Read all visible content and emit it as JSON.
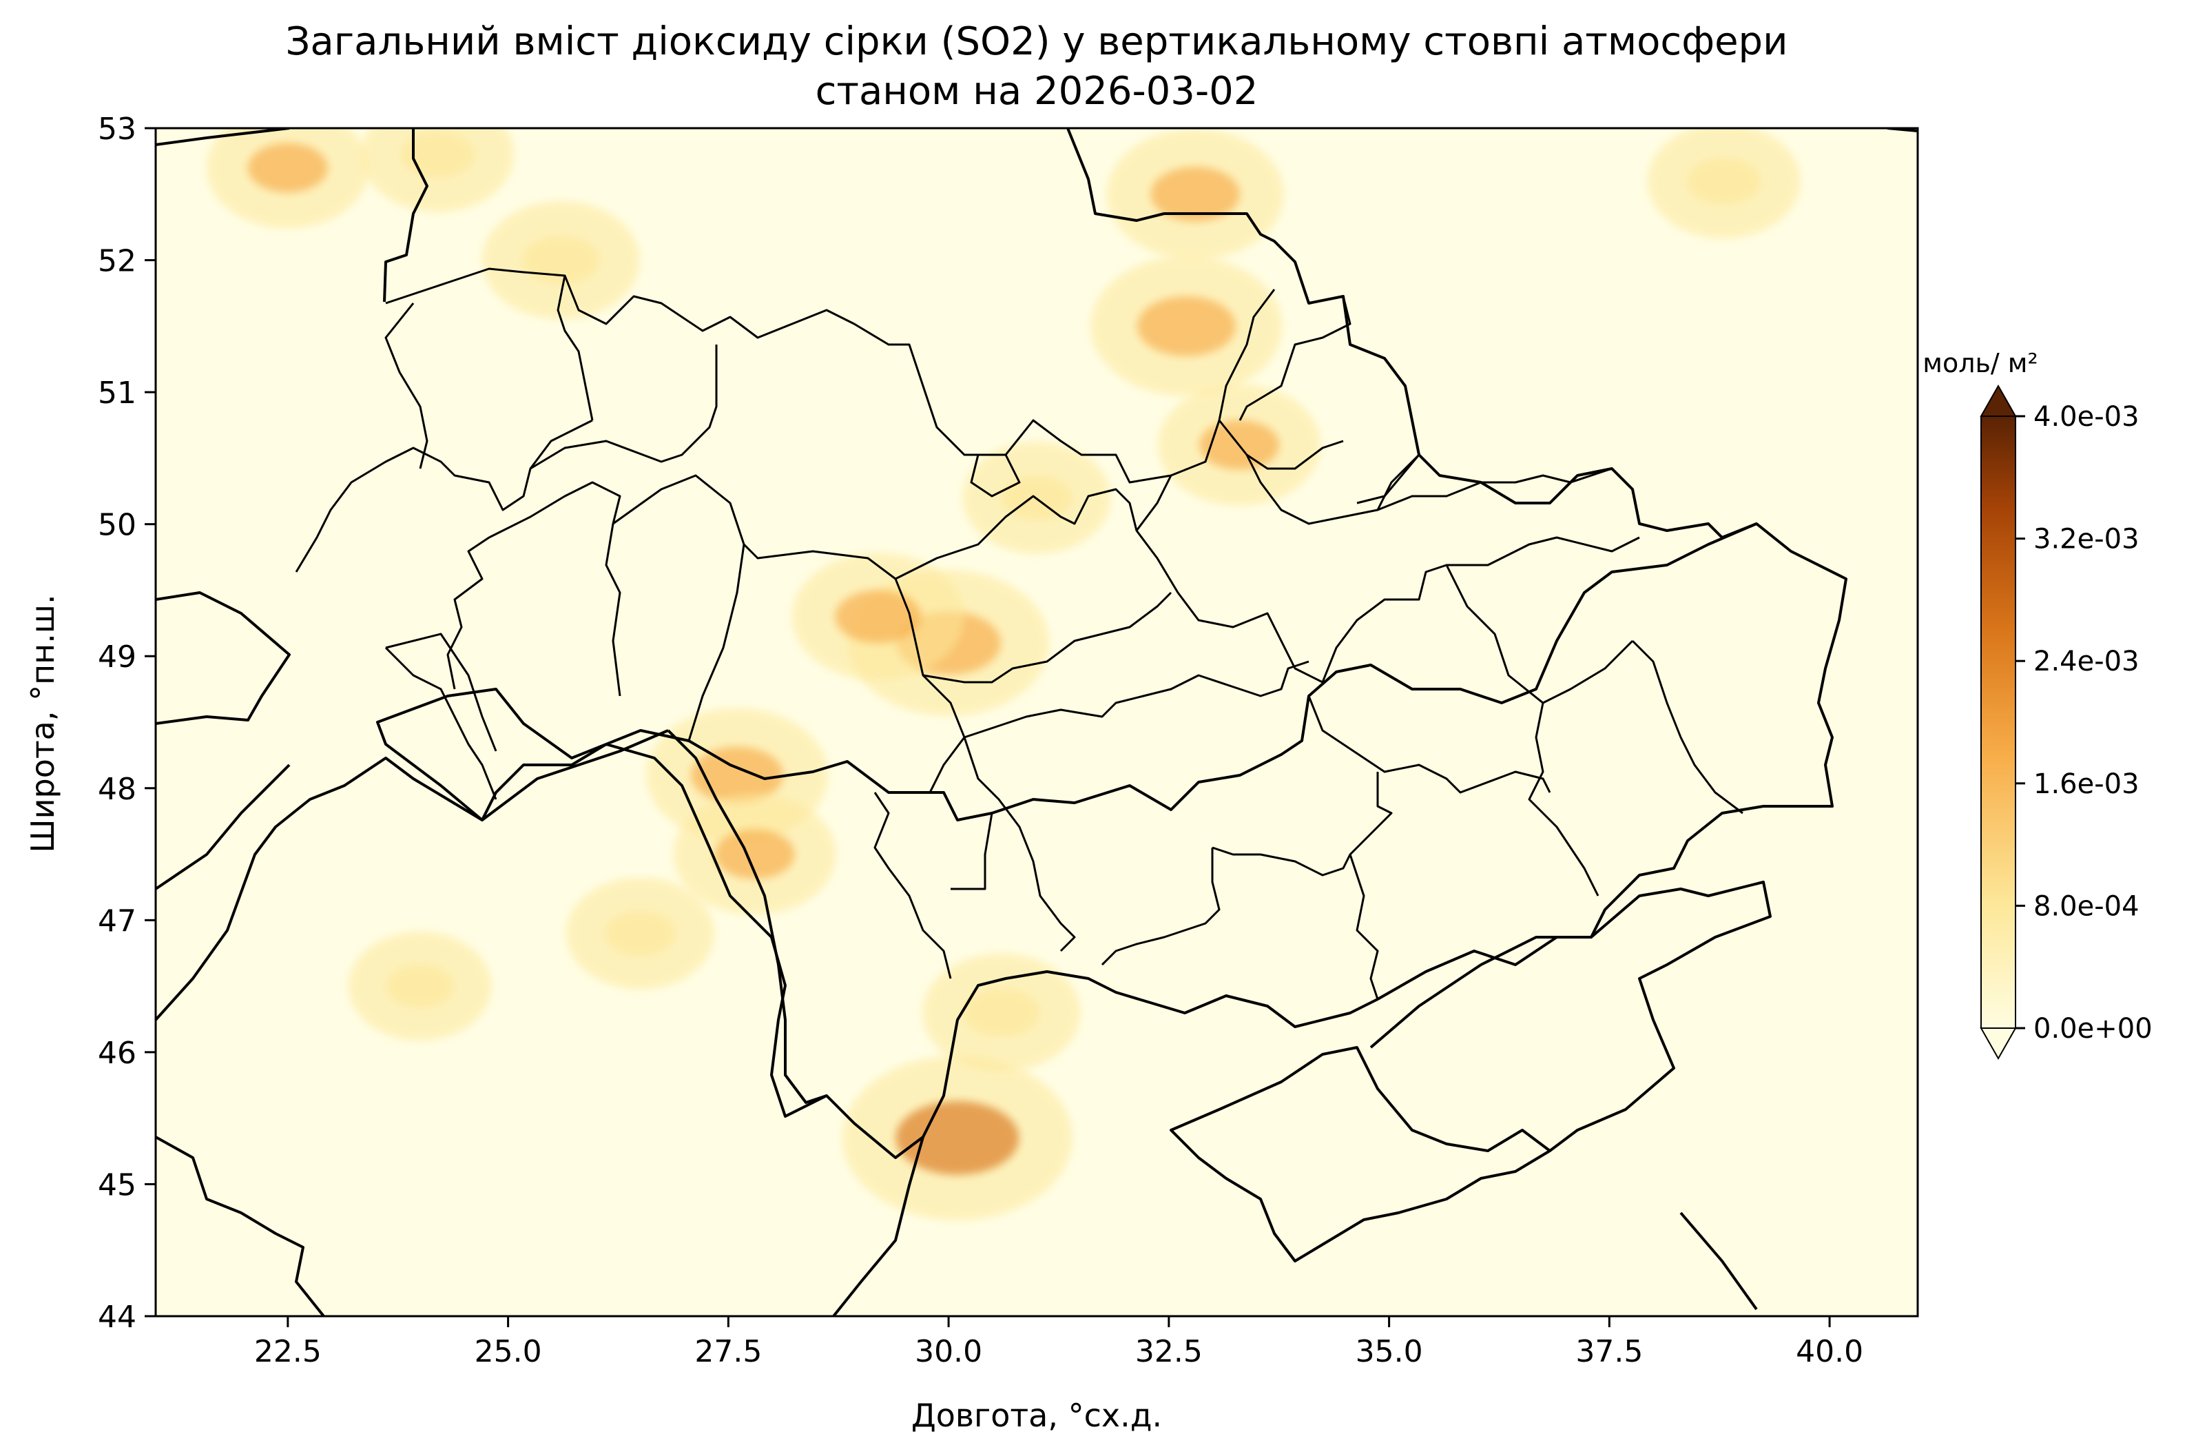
{
  "title": {
    "line1": "Загальний вміст діоксиду сірки (SO2) у вертикальному стовпі атмосфери",
    "line2": "станом на 2026-03-02"
  },
  "axes": {
    "xlabel": "Довгота, °сх.д.",
    "ylabel": "Широта, °пн.ш.",
    "xlim": [
      21.0,
      41.0
    ],
    "ylim": [
      44,
      53
    ],
    "xticks": [
      "22.5",
      "25.0",
      "27.5",
      "30.0",
      "32.5",
      "35.0",
      "37.5",
      "40.0"
    ],
    "yticks": [
      "44",
      "45",
      "46",
      "47",
      "48",
      "49",
      "50",
      "51",
      "52",
      "53"
    ]
  },
  "colorbar": {
    "unit_label": "моль/ м²",
    "range": [
      0,
      0.004
    ],
    "ticks": [
      "0.0e+00",
      "8.0e-04",
      "1.6e-03",
      "2.4e-03",
      "3.2e-03",
      "4.0e-03"
    ],
    "colors": [
      "#fffde0",
      "#fde89a",
      "#f7ac48",
      "#d9761a",
      "#a54307",
      "#5a2304"
    ]
  },
  "hotspots": [
    {
      "lon": 30.1,
      "lat": 45.35,
      "value": 0.0022
    },
    {
      "lon": 30.0,
      "lat": 49.1,
      "value": 0.0016
    },
    {
      "lon": 29.2,
      "lat": 49.3,
      "value": 0.001
    },
    {
      "lon": 32.7,
      "lat": 51.5,
      "value": 0.0014
    },
    {
      "lon": 32.8,
      "lat": 52.5,
      "value": 0.0011
    },
    {
      "lon": 27.6,
      "lat": 48.1,
      "value": 0.0012
    },
    {
      "lon": 27.8,
      "lat": 47.5,
      "value": 0.0008
    },
    {
      "lon": 30.6,
      "lat": 46.3,
      "value": 0.0007
    },
    {
      "lon": 22.5,
      "lat": 52.7,
      "value": 0.0008
    },
    {
      "lon": 24.2,
      "lat": 52.8,
      "value": 0.0006
    },
    {
      "lon": 25.6,
      "lat": 52.0,
      "value": 0.0007
    },
    {
      "lon": 33.3,
      "lat": 50.6,
      "value": 0.0008
    },
    {
      "lon": 38.8,
      "lat": 52.6,
      "value": 0.0006
    },
    {
      "lon": 24.0,
      "lat": 46.5,
      "value": 0.0004
    },
    {
      "lon": 31.0,
      "lat": 50.2,
      "value": 0.0005
    },
    {
      "lon": 26.5,
      "lat": 46.9,
      "value": 0.0005
    }
  ]
}
